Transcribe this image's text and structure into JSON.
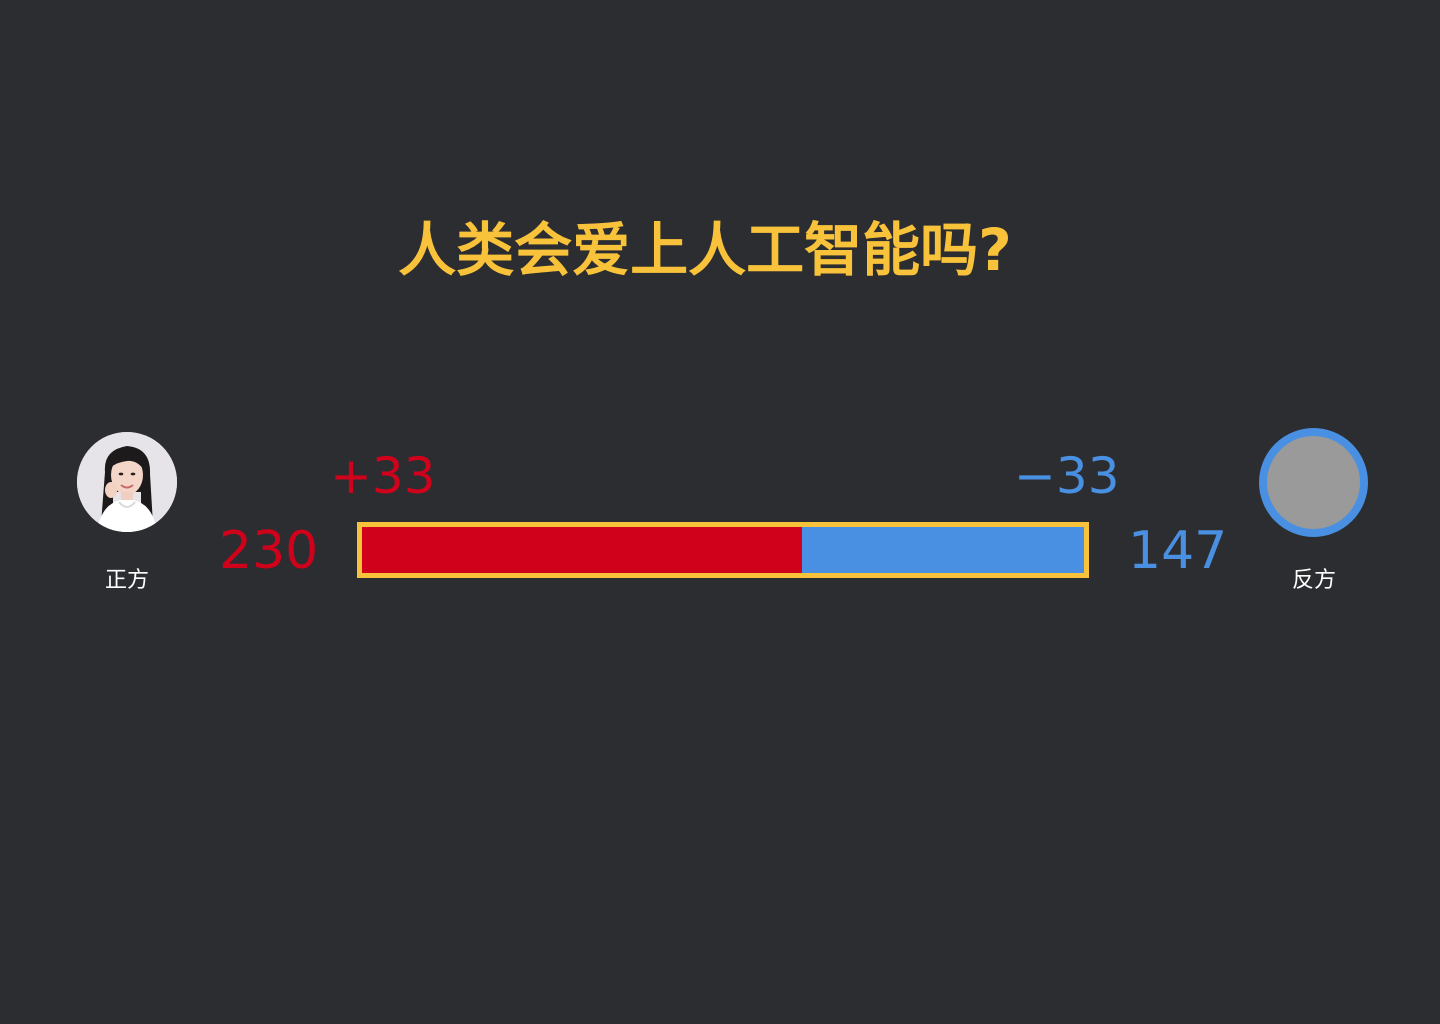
{
  "debate": {
    "title": "人类会爱上人工智能吗?",
    "pro": {
      "side_label": "正方",
      "score": "230",
      "delta": "+33",
      "avatar": "photo-avatar"
    },
    "con": {
      "side_label": "反方",
      "score": "147",
      "delta": "−33",
      "avatar": "placeholder-avatar"
    },
    "vote_bar": {
      "pro_share": 0.61,
      "con_share": 0.39
    }
  },
  "colors": {
    "background": "#2c2d31",
    "title": "#f8c33a",
    "pro": "#d0021b",
    "con": "#4a90e2",
    "bar_border": "#f8c33a",
    "label": "#ffffff"
  }
}
